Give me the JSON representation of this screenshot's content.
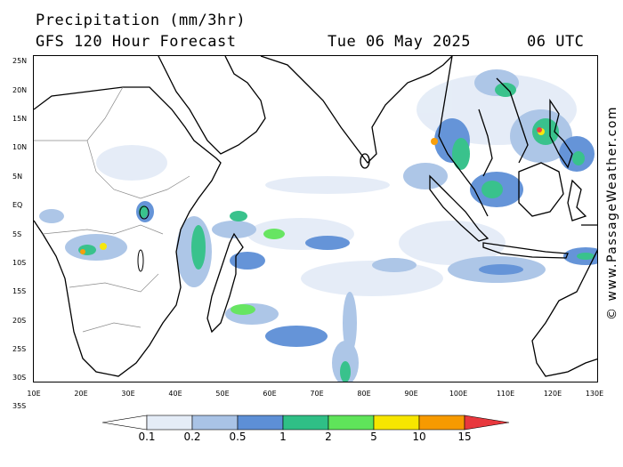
{
  "title": {
    "line1": "Precipitation (mm/3hr)",
    "line2": "GFS 120 Hour Forecast",
    "date": "Tue 06 May 2025",
    "time": "06 UTC"
  },
  "credit": "© www.PassageWeather.com",
  "map": {
    "lat_labels": [
      "25N",
      "20N",
      "15N",
      "10N",
      "5N",
      "EQ",
      "5S",
      "10S",
      "15S",
      "20S",
      "25S",
      "30S",
      "35S"
    ],
    "lon_labels": [
      "10E",
      "20E",
      "30E",
      "40E",
      "50E",
      "60E",
      "70E",
      "80E",
      "90E",
      "100E",
      "110E",
      "120E",
      "130E"
    ]
  },
  "legend": {
    "labels": [
      "0.1",
      "0.2",
      "0.5",
      "1",
      "2",
      "5",
      "10",
      "15"
    ],
    "colors": [
      "#ffffff",
      "#e4ecf7",
      "#a9c3e6",
      "#5d8fd6",
      "#2fbf86",
      "#5fe45a",
      "#f7e600",
      "#f79a00",
      "#e8383d"
    ]
  },
  "palette": {
    "land_outline": "#000000",
    "border": "#8a8a8a"
  }
}
